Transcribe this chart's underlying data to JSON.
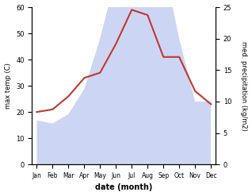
{
  "months": [
    "Jan",
    "Feb",
    "Mar",
    "Apr",
    "May",
    "Jun",
    "Jul",
    "Aug",
    "Sep",
    "Oct",
    "Nov",
    "Dec"
  ],
  "month_indices": [
    0,
    1,
    2,
    3,
    4,
    5,
    6,
    7,
    8,
    9,
    10,
    11
  ],
  "temp": [
    20,
    21,
    26,
    33,
    35,
    46,
    59,
    57,
    41,
    41,
    28,
    23
  ],
  "precip": [
    7,
    6.5,
    8,
    12,
    20,
    30,
    60,
    58,
    32,
    20,
    10,
    10
  ],
  "temp_color": "#c0392b",
  "precip_color": "#b8c4f0",
  "bg_color": "#ffffff",
  "temp_ylim": [
    0,
    60
  ],
  "precip_ylim": [
    0,
    25
  ],
  "temp_yticks": [
    0,
    10,
    20,
    30,
    40,
    50,
    60
  ],
  "precip_yticks": [
    0,
    5,
    10,
    15,
    20,
    25
  ],
  "ylabel_left": "max temp (C)",
  "ylabel_right": "med. precipitation (kg/m2)",
  "xlabel": "date (month)",
  "line_width": 1.5,
  "temp_scale_max": 60,
  "precip_scale_max": 25
}
